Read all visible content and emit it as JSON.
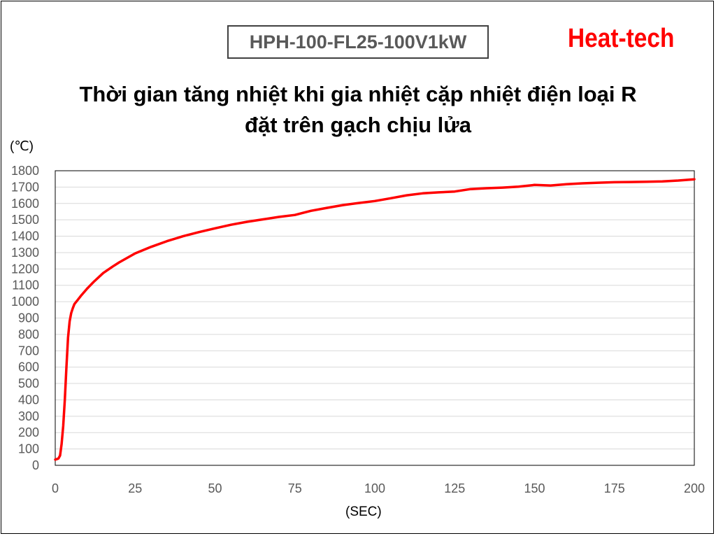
{
  "header": {
    "model": "HPH-100-FL25-100V1kW",
    "brand": "Heat-tech"
  },
  "chart_data": {
    "type": "line",
    "title_line1": "Thời gian tăng nhiệt khi gia nhiệt cặp nhiệt điện loại R",
    "title_line2": "đặt trên gạch chịu lửa",
    "ylabel": "(℃)",
    "xlabel": "(SEC)",
    "xlim": [
      0,
      200
    ],
    "ylim": [
      0,
      1800
    ],
    "x_ticks": [
      0,
      25,
      50,
      75,
      100,
      125,
      150,
      175,
      200
    ],
    "y_ticks": [
      0,
      100,
      200,
      300,
      400,
      500,
      600,
      700,
      800,
      900,
      1000,
      1100,
      1200,
      1300,
      1400,
      1500,
      1600,
      1700,
      1800
    ],
    "grid": true,
    "line_color": "#ff0000",
    "series": [
      {
        "x": [
          0,
          0.5,
          1,
          1.5,
          2,
          2.5,
          3,
          3.5,
          4,
          4.5,
          5,
          5.5,
          6,
          7,
          8,
          10,
          12,
          15,
          18,
          20,
          25,
          30,
          35,
          40,
          45,
          50,
          55,
          60,
          65,
          70,
          75,
          77,
          80,
          85,
          90,
          95,
          100,
          105,
          110,
          115,
          120,
          125,
          130,
          135,
          140,
          145,
          150,
          155,
          160,
          165,
          170,
          175,
          180,
          185,
          190,
          195,
          200
        ],
        "y": [
          35,
          38,
          42,
          60,
          130,
          240,
          400,
          600,
          780,
          880,
          930,
          960,
          985,
          1010,
          1035,
          1080,
          1120,
          1175,
          1215,
          1240,
          1295,
          1335,
          1370,
          1400,
          1425,
          1448,
          1470,
          1488,
          1503,
          1518,
          1530,
          1540,
          1555,
          1573,
          1590,
          1603,
          1615,
          1632,
          1650,
          1662,
          1668,
          1673,
          1688,
          1693,
          1697,
          1703,
          1713,
          1710,
          1718,
          1723,
          1727,
          1730,
          1731,
          1733,
          1735,
          1740,
          1748
        ]
      }
    ]
  }
}
